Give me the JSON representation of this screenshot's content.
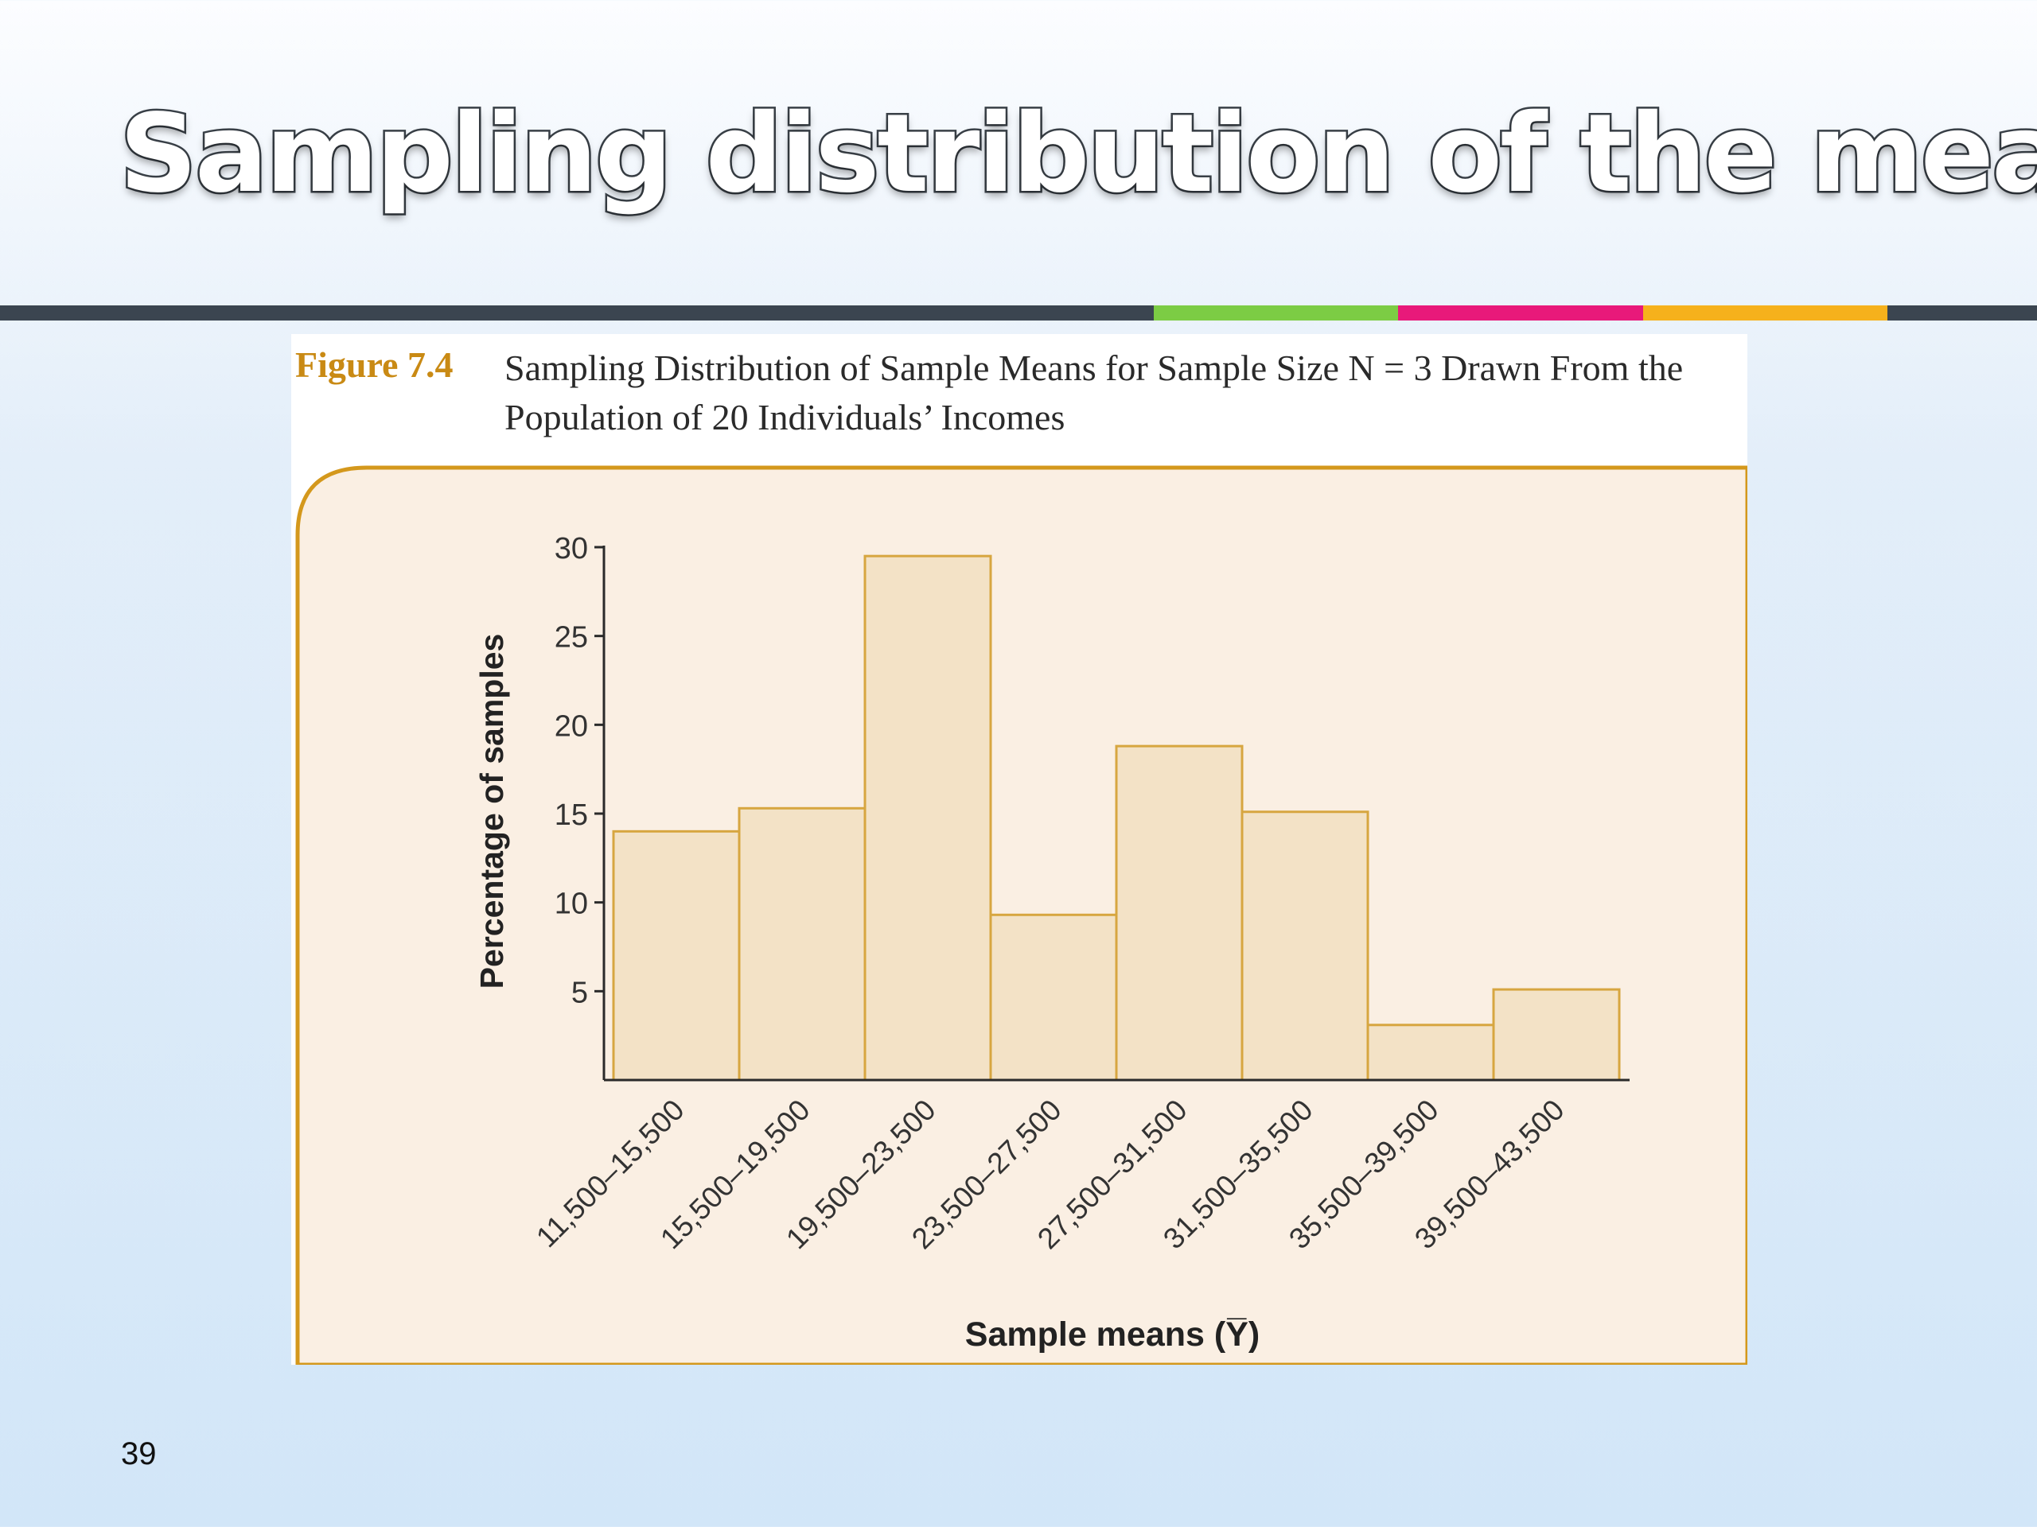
{
  "slide": {
    "title": "Sampling distribution of the mean",
    "page_number": "39"
  },
  "colors": {
    "divider_base": "#3b4550",
    "accent_green": "#7ccc44",
    "accent_pink": "#e8197a",
    "accent_orange": "#f6b11c",
    "figure_label": "#c98a14",
    "chart_bg": "#faefe3",
    "bar_fill": "#f3e2c6",
    "bar_stroke": "#d7a640"
  },
  "figure": {
    "label": "Figure 7.4",
    "caption_line1": "Sampling Distribution of Sample Means for Sample Size N = 3 Drawn From the",
    "caption_line2": "Population of 20 Individuals’ Incomes"
  },
  "chart_data": {
    "type": "bar",
    "categories": [
      "11,500–15,500",
      "15,500–19,500",
      "19,500–23,500",
      "23,500–27,500",
      "27,500–31,500",
      "31,500–35,500",
      "35,500–39,500",
      "39,500–43,500"
    ],
    "values": [
      14,
      15.3,
      29.5,
      9.3,
      18.8,
      15.1,
      3.1,
      5.1
    ],
    "xlabel": "Sample means (Y̅)",
    "ylabel": "Percentage of samples",
    "ylim": [
      0,
      30
    ],
    "yticks": [
      5,
      10,
      15,
      20,
      25,
      30
    ],
    "grid": false
  }
}
